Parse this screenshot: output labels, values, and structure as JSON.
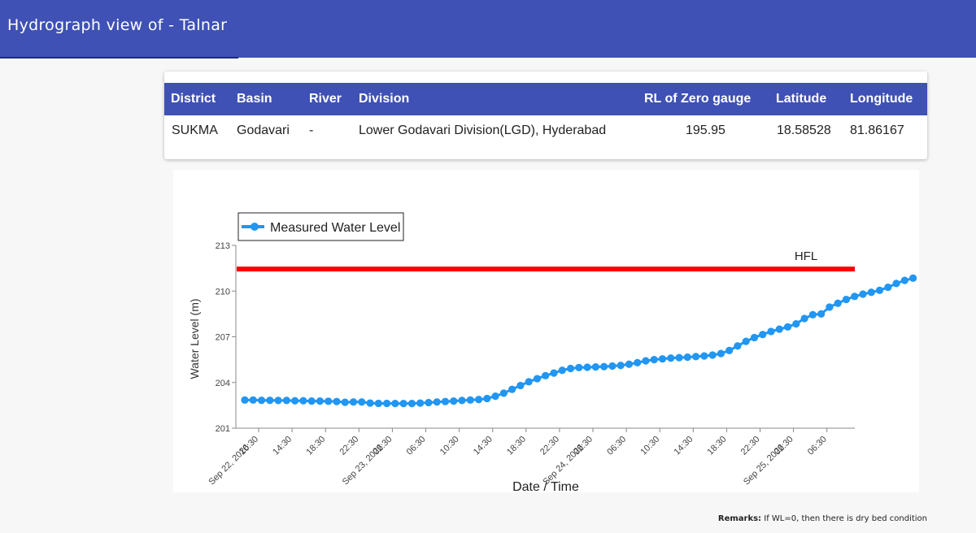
{
  "header": {
    "title": "Hydrograph view of - Talnar"
  },
  "station_table": {
    "headers": {
      "district": "District",
      "basin": "Basin",
      "river": "River",
      "division": "Division",
      "rl": "RL of Zero gauge",
      "latitude": "Latitude",
      "longitude": "Longitude"
    },
    "values": {
      "district": "SUKMA",
      "basin": "Godavari",
      "river": "-",
      "division": "Lower Godavari Division(LGD), Hyderabad",
      "rl": "195.95",
      "latitude": "18.58528",
      "longitude": "81.86167"
    }
  },
  "chart_data": {
    "type": "line",
    "xlabel": "Date / Time",
    "ylabel": "Water Level (m)",
    "ylim": [
      201,
      213
    ],
    "yticks": [
      201,
      204,
      207,
      210,
      213
    ],
    "x_start": "Sep 22, 2026 09:00",
    "x_step_hours": 1,
    "xticks": [
      {
        "label": "10:30",
        "sub": "Sep 22, 2026"
      },
      {
        "label": "14:30"
      },
      {
        "label": "18:30"
      },
      {
        "label": "22:30"
      },
      {
        "label": "02:30",
        "sub": "Sep 23, 2026"
      },
      {
        "label": "06:30"
      },
      {
        "label": "10:30"
      },
      {
        "label": "14:30"
      },
      {
        "label": "18:30"
      },
      {
        "label": "22:30"
      },
      {
        "label": "02:30",
        "sub": "Sep 24, 2026"
      },
      {
        "label": "06:30"
      },
      {
        "label": "10:30"
      },
      {
        "label": "14:30"
      },
      {
        "label": "18:30"
      },
      {
        "label": "22:30"
      },
      {
        "label": "02:30",
        "sub": "Sep 25, 2026"
      },
      {
        "label": "06:30"
      }
    ],
    "legend": "top-left",
    "series": [
      {
        "name": "Measured Water Level",
        "color": "#2196f3",
        "values": [
          202.85,
          202.85,
          202.83,
          202.83,
          202.82,
          202.82,
          202.8,
          202.8,
          202.78,
          202.78,
          202.77,
          202.75,
          202.7,
          202.72,
          202.72,
          202.65,
          202.63,
          202.63,
          202.62,
          202.62,
          202.62,
          202.65,
          202.68,
          202.72,
          202.75,
          202.78,
          202.82,
          202.85,
          202.88,
          202.95,
          203.1,
          203.3,
          203.55,
          203.8,
          204.05,
          204.25,
          204.45,
          204.62,
          204.8,
          204.92,
          204.98,
          205.0,
          205.02,
          205.04,
          205.08,
          205.12,
          205.2,
          205.3,
          205.42,
          205.5,
          205.55,
          205.6,
          205.63,
          205.66,
          205.7,
          205.74,
          205.8,
          205.9,
          206.1,
          206.4,
          206.7,
          206.95,
          207.15,
          207.35,
          207.5,
          207.65,
          207.85,
          208.2,
          208.45,
          208.5,
          208.95,
          209.2,
          209.45,
          209.65,
          209.8,
          209.92,
          210.05,
          210.25,
          210.5,
          210.7,
          210.85
        ]
      },
      {
        "name": "HFL",
        "type": "hline",
        "value": 211.45,
        "color": "#ff0000"
      }
    ]
  },
  "remarks": {
    "label": "Remarks:",
    "text": " If WL=0, then there is dry bed condition"
  }
}
